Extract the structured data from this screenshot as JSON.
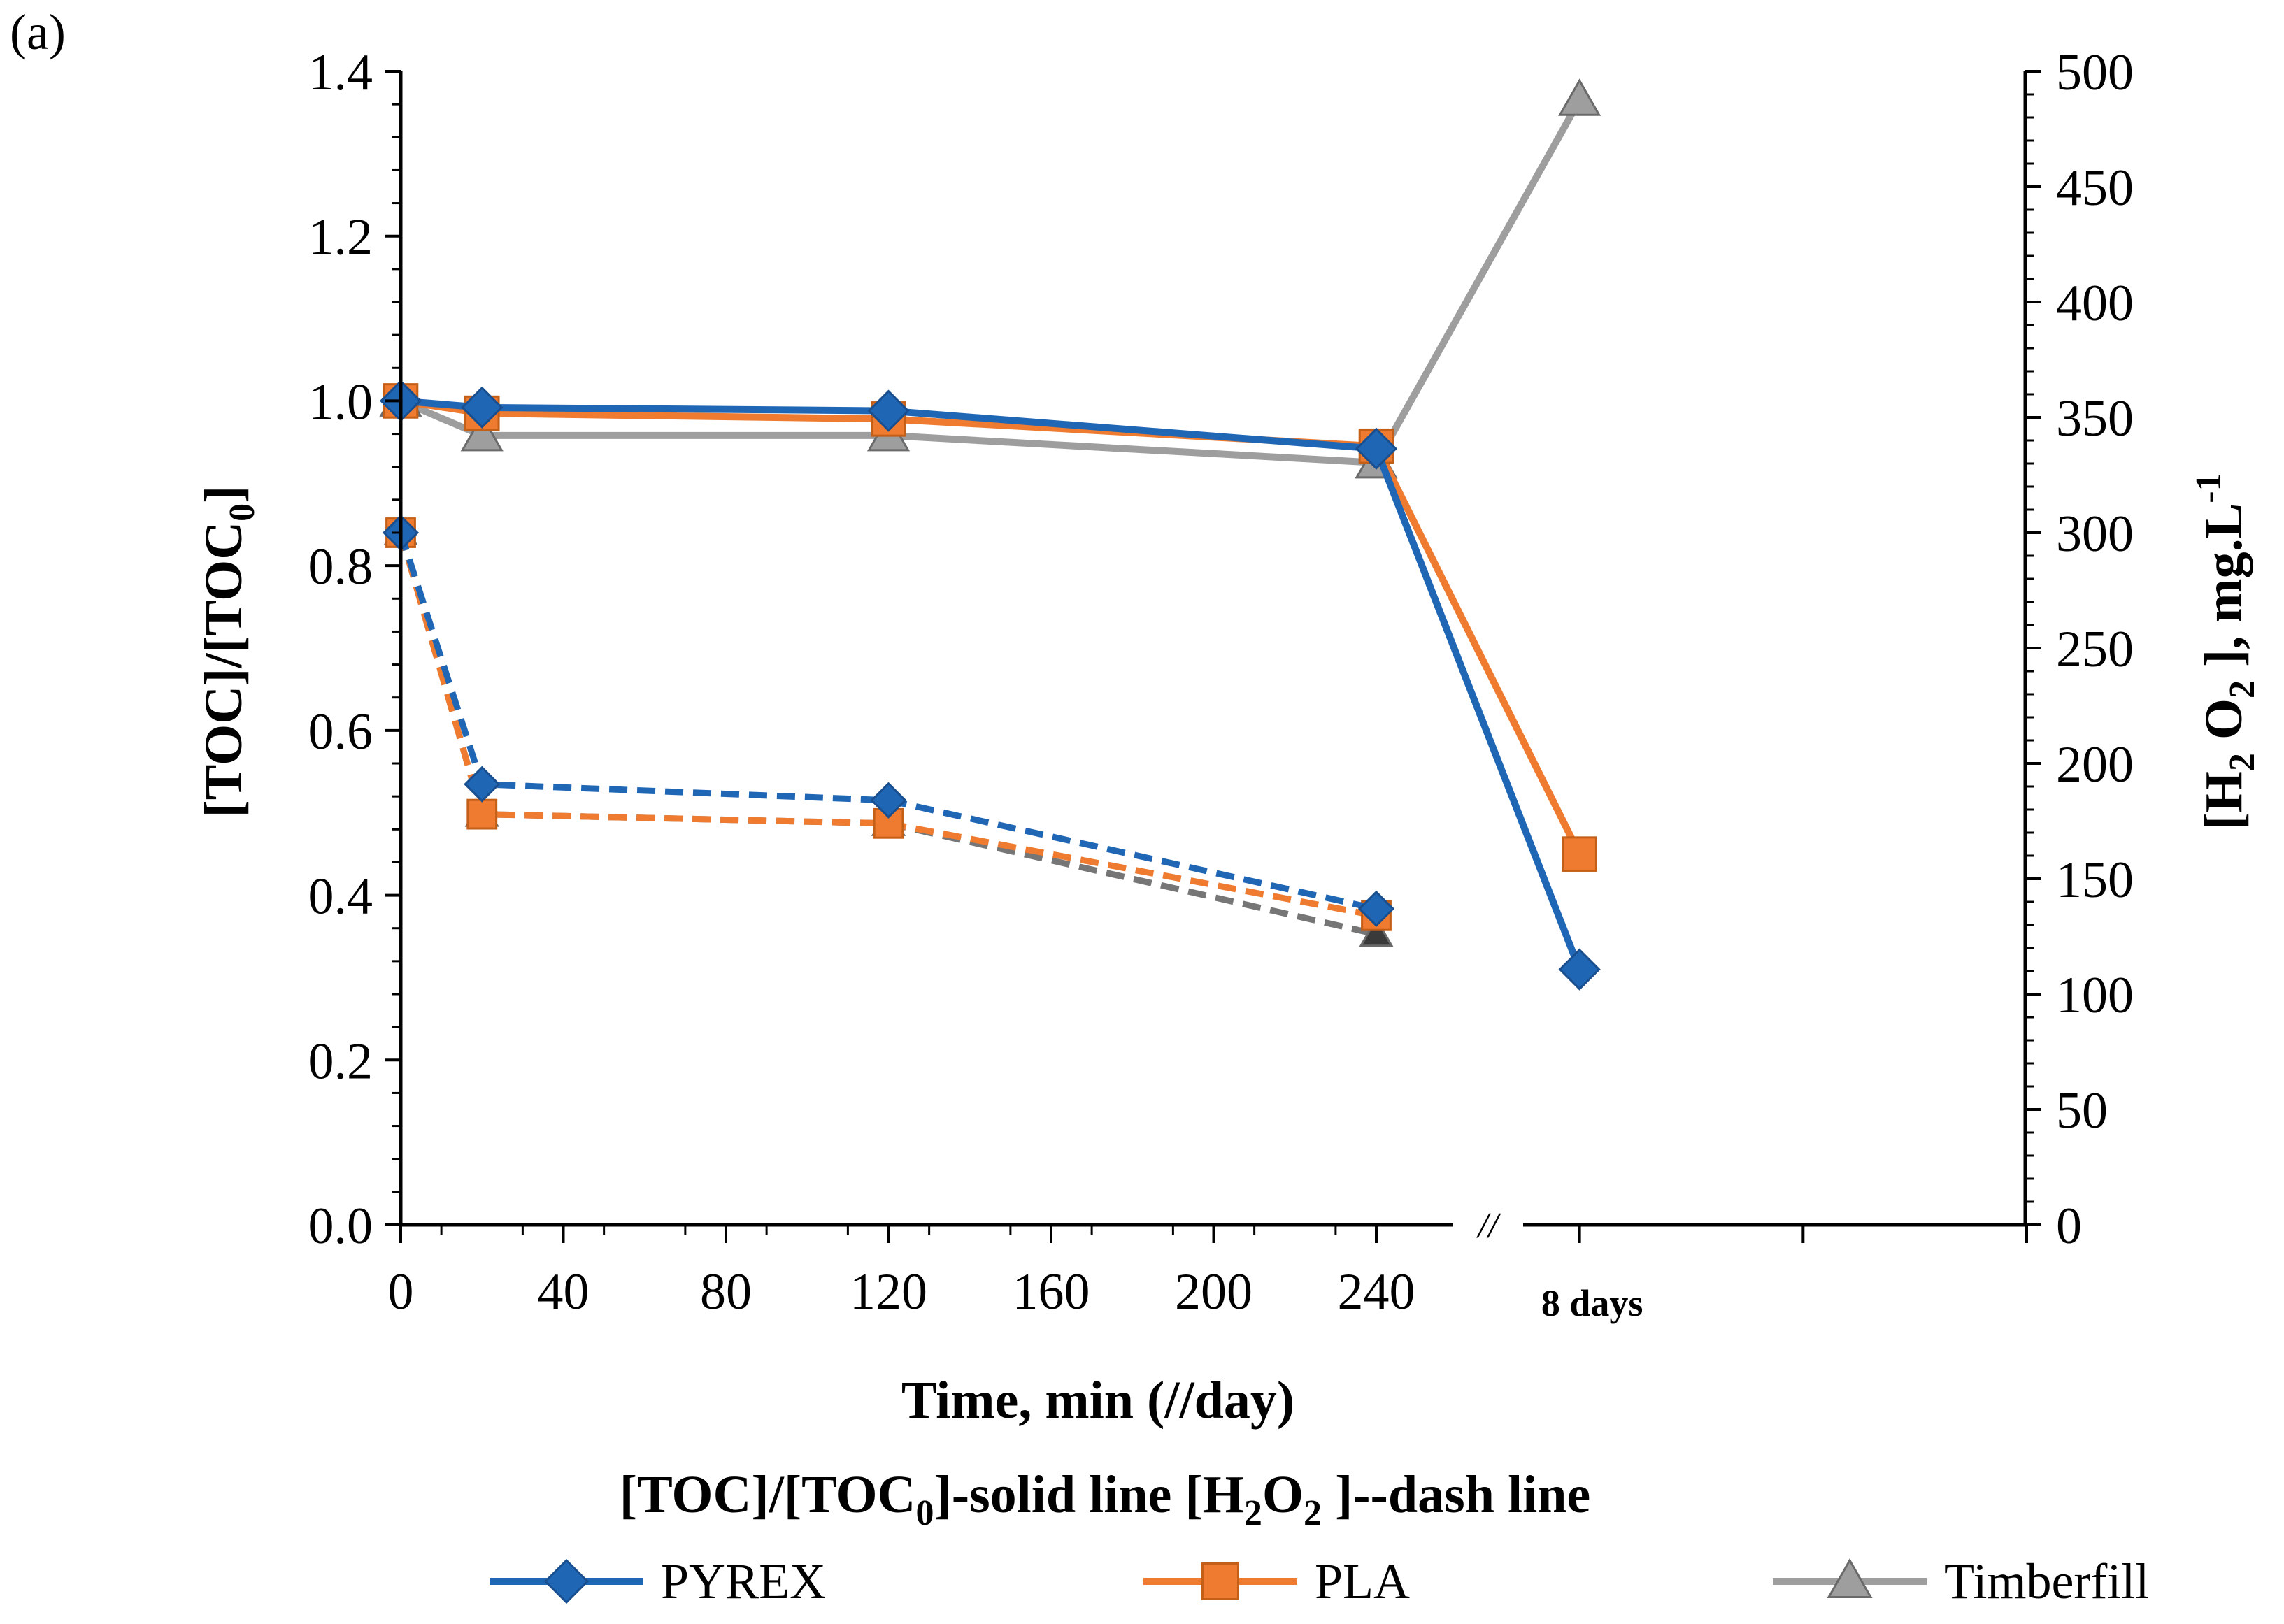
{
  "chart_data": {
    "type": "line",
    "panel_label": "(a)",
    "xlabel": "Time, min (//day)",
    "subtitle": {
      "part1": "[TOC]/[TOC",
      "part1_sub": "0",
      "part2": "]-solid line [H",
      "part2_sub1": "2",
      "part3": "O",
      "part3_sub2": "2",
      "part4": " ]--dash line"
    },
    "ylabel_left": {
      "main": "[TOC]/[TOC",
      "sub": "0",
      "end": "]"
    },
    "ylabel_right": {
      "a": "[H",
      "sub1": "2",
      "b": " O",
      "sub2": "2",
      "c": " ], mg.L",
      "sup": "-1"
    },
    "x_ticks": [
      "0",
      "40",
      "80",
      "120",
      "160",
      "200",
      "240"
    ],
    "x_special_label": "8 days",
    "x_break_label": "//",
    "y_left_ticks": [
      "0.0",
      "0.2",
      "0.4",
      "0.6",
      "0.8",
      "1.0",
      "1.2",
      "1.4"
    ],
    "y_right_ticks": [
      "0",
      "50",
      "100",
      "150",
      "200",
      "250",
      "300",
      "350",
      "400",
      "450",
      "500"
    ],
    "x_break_after": 240,
    "x_day_position": 290,
    "xlim": [
      0,
      400
    ],
    "ylim_left": [
      0,
      1.4
    ],
    "ylim_right": [
      0,
      500
    ],
    "legend_position": "bottom",
    "series": [
      {
        "name": "PYREX",
        "color": "#1F66B5",
        "marker": "diamond",
        "toc": [
          [
            0,
            1.0
          ],
          [
            20,
            0.992
          ],
          [
            120,
            0.988
          ],
          [
            240,
            0.942
          ],
          [
            "8 days",
            0.31
          ]
        ],
        "h2o2": [
          [
            0,
            300
          ],
          [
            20,
            191
          ],
          [
            120,
            184
          ],
          [
            240,
            137
          ]
        ]
      },
      {
        "name": "PLA",
        "color": "#EE7B2F",
        "marker": "square",
        "toc": [
          [
            0,
            1.0
          ],
          [
            20,
            0.985
          ],
          [
            120,
            0.978
          ],
          [
            240,
            0.945
          ],
          [
            "8 days",
            0.45
          ]
        ],
        "h2o2": [
          [
            0,
            300
          ],
          [
            20,
            178
          ],
          [
            120,
            174
          ],
          [
            240,
            134
          ]
        ]
      },
      {
        "name": "Timberfill",
        "color": "#9E9E9E",
        "marker": "triangle",
        "dash_color": "#767676",
        "toc": [
          [
            0,
            1.0
          ],
          [
            20,
            0.958
          ],
          [
            120,
            0.958
          ],
          [
            240,
            0.925
          ],
          [
            "8 days",
            1.365
          ]
        ],
        "h2o2": [
          [
            0,
            300
          ],
          [
            20,
            178
          ],
          [
            120,
            174
          ],
          [
            240,
            126
          ]
        ]
      }
    ]
  }
}
